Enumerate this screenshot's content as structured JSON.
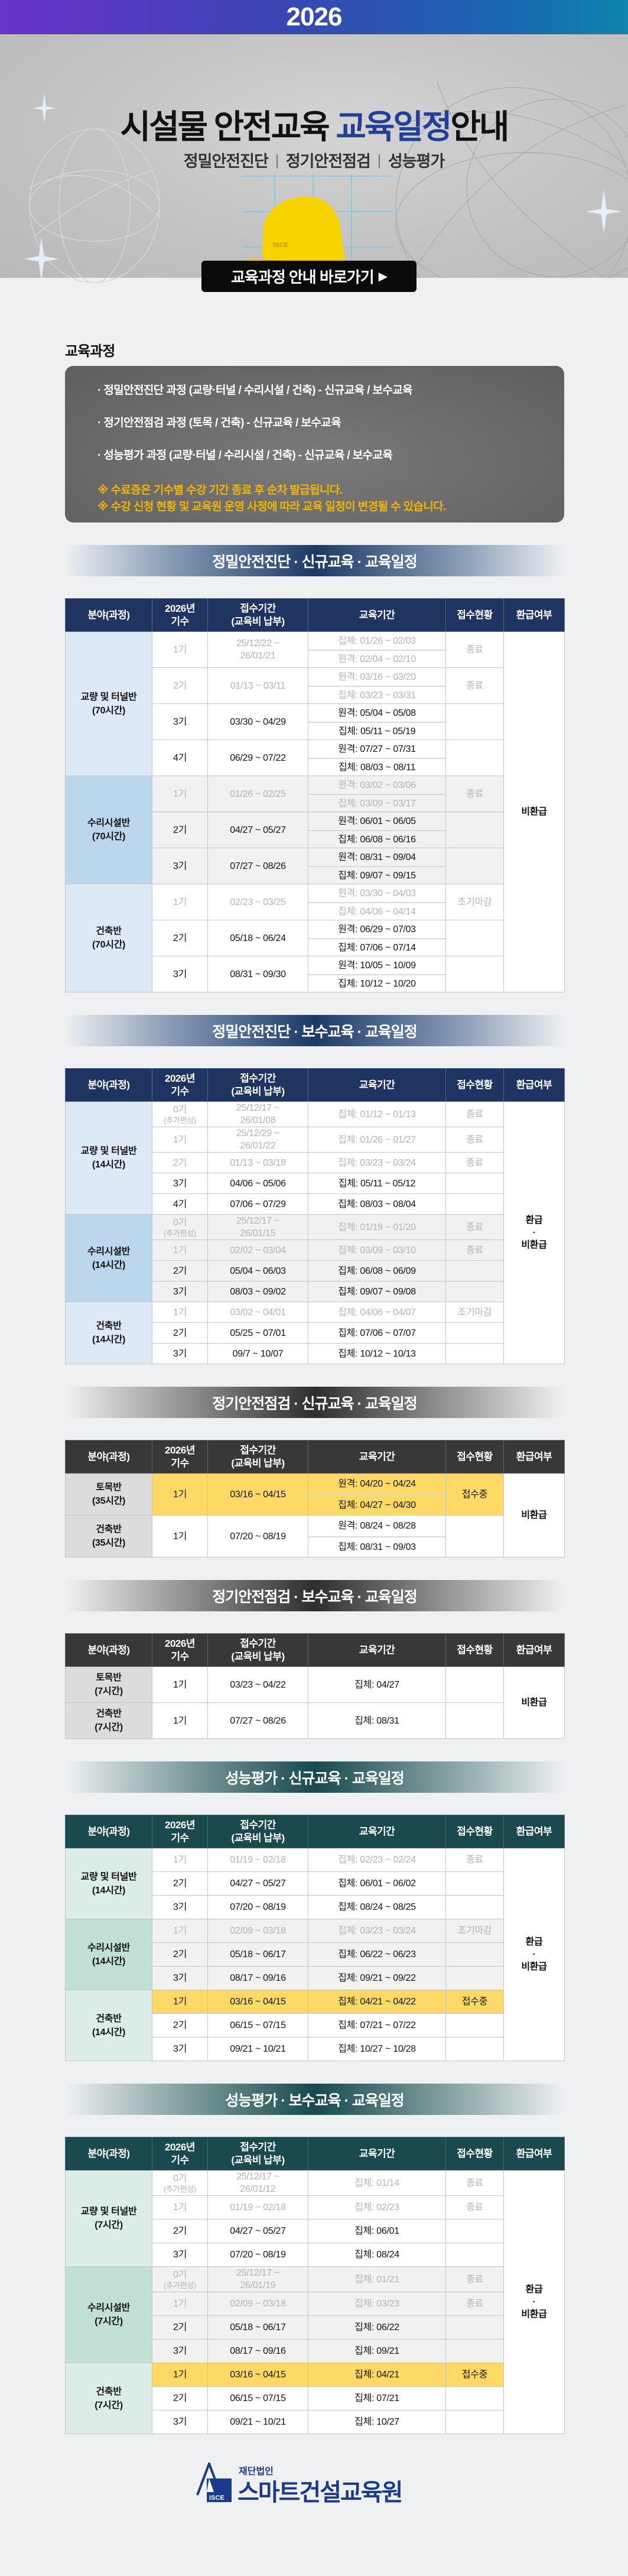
{
  "header": {
    "year": "2026",
    "title_main": "시설물 안전교육 ",
    "title_highlight": "교육일정",
    "title_tail": "안내",
    "subtitles": [
      "정밀안전진단",
      "정기안전점검",
      "성능평가"
    ],
    "cta_label": "교육과정 안내 바로가기",
    "cta_icon": "triangle-right-icon",
    "helmet_mark": "ISCE"
  },
  "courses": {
    "label": "교육과정",
    "items": [
      "· 정밀안전진단 과정 (교량·터널 / 수리시설 / 건축) - 신규교육 / 보수교육",
      "· 정기안전점검 과정 (토목 / 건축) - 신규교육 / 보수교육",
      "· 성능평가 과정 (교량·터널 / 수리시설 / 건축) - 신규교육 / 보수교육"
    ],
    "notes": [
      "※ 수료증은 기수별 수강 기간 종료 후 순차 발급됩니다.",
      "※ 수강 신청 현황 및 교육원 운영 사정에 따라 교육 일정이 변경될 수 있습니다."
    ]
  },
  "columns": [
    "분야(과정)",
    "2026년\n기수",
    "접수기간\n(교육비 납부)",
    "교육기간",
    "접수현황",
    "환급여부"
  ],
  "colors": {
    "navy": "#1f3460",
    "gray": "#383838",
    "green": "#1a4a4e",
    "highlight": "#ffd966",
    "note": "#f5b400",
    "brand": "#1a3a8a"
  },
  "tables": [
    {
      "title": "정밀안전진단 · 신규교육 · 교육일정",
      "theme": "navy",
      "refund": "비환급",
      "groups": [
        {
          "label": "교량 및 터널반\n(70시간)",
          "rows": [
            {
              "gen": "1기",
              "reg": "25/12/22 ~\n26/01/21",
              "edu": [
                "집체: 01/26 ~ 02/03",
                "원격: 02/04 ~ 02/10"
              ],
              "status": "종료",
              "past": true
            },
            {
              "gen": "2기",
              "reg": "01/13 ~ 03/11",
              "edu": [
                "원격: 03/16 ~ 03/20",
                "집체: 03/23 ~ 03/31"
              ],
              "status": "종료",
              "past": true
            },
            {
              "gen": "3기",
              "reg": "03/30 ~ 04/29",
              "edu": [
                "원격: 05/04 ~ 05/08",
                "집체: 05/11 ~ 05/19"
              ],
              "status": ""
            },
            {
              "gen": "4기",
              "reg": "06/29 ~ 07/22",
              "edu": [
                "원격: 07/27 ~ 07/31",
                "집체: 08/03 ~ 08/11"
              ],
              "status": ""
            }
          ]
        },
        {
          "label": "수리시설반\n(70시간)",
          "rows": [
            {
              "gen": "1기",
              "reg": "01/26 ~ 02/25",
              "edu": [
                "원격: 03/02 ~ 03/06",
                "집체: 03/09 ~ 03/17"
              ],
              "status": "종료",
              "past": true
            },
            {
              "gen": "2기",
              "reg": "04/27 ~ 05/27",
              "edu": [
                "원격: 06/01 ~ 06/05",
                "집체: 06/08 ~ 06/16"
              ],
              "status": ""
            },
            {
              "gen": "3기",
              "reg": "07/27 ~ 08/26",
              "edu": [
                "원격: 08/31 ~ 09/04",
                "집체: 09/07 ~ 09/15"
              ],
              "status": ""
            }
          ]
        },
        {
          "label": "건축반\n(70시간)",
          "rows": [
            {
              "gen": "1기",
              "reg": "02/23 ~ 03/25",
              "edu": [
                "원격: 03/30 ~ 04/03",
                "집체: 04/06 ~ 04/14"
              ],
              "status": "조기마감",
              "past": true
            },
            {
              "gen": "2기",
              "reg": "05/18 ~ 06/24",
              "edu": [
                "원격: 06/29 ~ 07/03",
                "집체: 07/06 ~ 07/14"
              ],
              "status": ""
            },
            {
              "gen": "3기",
              "reg": "08/31 ~ 09/30",
              "edu": [
                "원격: 10/05 ~ 10/09",
                "집체: 10/12 ~ 10/20"
              ],
              "status": ""
            }
          ]
        }
      ]
    },
    {
      "title": "정밀안전진단 · 보수교육 · 교육일정",
      "theme": "navy",
      "refund": "환급\n·\n비환급",
      "groups": [
        {
          "label": "교량 및 터널반\n(14시간)",
          "rows": [
            {
              "gen": "0기",
              "gen_note": "(추가편성)",
              "reg": "25/12/17 ~\n26/01/08",
              "edu": [
                "집체: 01/12 ~ 01/13"
              ],
              "status": "종료",
              "past": true
            },
            {
              "gen": "1기",
              "reg": "25/12/29 ~\n26/01/22",
              "edu": [
                "집체: 01/26 ~ 01/27"
              ],
              "status": "종료",
              "past": true
            },
            {
              "gen": "2기",
              "reg": "01/13 ~ 03/18",
              "edu": [
                "집체: 03/23 ~ 03/24"
              ],
              "status": "종료",
              "past": true
            },
            {
              "gen": "3기",
              "reg": "04/06 ~ 05/06",
              "edu": [
                "집체: 05/11 ~ 05/12"
              ],
              "status": ""
            },
            {
              "gen": "4기",
              "reg": "07/06 ~ 07/29",
              "edu": [
                "집체: 08/03 ~ 08/04"
              ],
              "status": ""
            }
          ]
        },
        {
          "label": "수리시설반\n(14시간)",
          "rows": [
            {
              "gen": "0기",
              "gen_note": "(추가편성)",
              "reg": "25/12/17 ~\n26/01/15",
              "edu": [
                "집체: 01/19 ~ 01/20"
              ],
              "status": "종료",
              "past": true
            },
            {
              "gen": "1기",
              "reg": "02/02 ~ 03/04",
              "edu": [
                "집체: 03/09 ~ 03/10"
              ],
              "status": "종료",
              "past": true
            },
            {
              "gen": "2기",
              "reg": "05/04 ~ 06/03",
              "edu": [
                "집체: 06/08 ~ 06/09"
              ],
              "status": ""
            },
            {
              "gen": "3기",
              "reg": "08/03 ~ 09/02",
              "edu": [
                "집체: 09/07 ~ 09/08"
              ],
              "status": ""
            }
          ]
        },
        {
          "label": "건축반\n(14시간)",
          "rows": [
            {
              "gen": "1기",
              "reg": "03/02 ~ 04/01",
              "edu": [
                "집체: 04/06 ~ 04/07"
              ],
              "status": "조기마감",
              "past": true
            },
            {
              "gen": "2기",
              "reg": "05/25 ~ 07/01",
              "edu": [
                "집체: 07/06 ~ 07/07"
              ],
              "status": ""
            },
            {
              "gen": "3기",
              "reg": "09/7 ~ 10/07",
              "edu": [
                "집체: 10/12 ~ 10/13"
              ],
              "status": ""
            }
          ]
        }
      ]
    },
    {
      "title": "정기안전점검 · 신규교육 · 교육일정",
      "theme": "gray",
      "refund": "비환급",
      "groups": [
        {
          "label": "토목반\n(35시간)",
          "rows": [
            {
              "gen": "1기",
              "reg": "03/16 ~ 04/15",
              "edu": [
                "원격: 04/20 ~ 04/24",
                "집체: 04/27 ~ 04/30"
              ],
              "status": "접수중",
              "highlight": true
            }
          ]
        },
        {
          "label": "건축반\n(35시간)",
          "rows": [
            {
              "gen": "1기",
              "reg": "07/20 ~ 08/19",
              "edu": [
                "원격: 08/24 ~ 08/28",
                "집체: 08/31 ~ 09/03"
              ],
              "status": ""
            }
          ]
        }
      ]
    },
    {
      "title": "정기안전점검 · 보수교육 · 교육일정",
      "theme": "gray",
      "refund": "비환급",
      "groups": [
        {
          "label": "토목반\n(7시간)",
          "rows": [
            {
              "gen": "1기",
              "reg": "03/23 ~ 04/22",
              "edu": [
                "집체: 04/27"
              ],
              "status": ""
            }
          ]
        },
        {
          "label": "건축반\n(7시간)",
          "rows": [
            {
              "gen": "1기",
              "reg": "07/27 ~ 08/26",
              "edu": [
                "집체: 08/31"
              ],
              "status": ""
            }
          ]
        }
      ]
    },
    {
      "title": "성능평가 · 신규교육 · 교육일정",
      "theme": "green",
      "refund": "환급\n·\n비환급",
      "groups": [
        {
          "label": "교량 및 터널반\n(14시간)",
          "rows": [
            {
              "gen": "1기",
              "reg": "01/19 ~ 02/18",
              "edu": [
                "집체: 02/23 ~ 02/24"
              ],
              "status": "종료",
              "past": true
            },
            {
              "gen": "2기",
              "reg": "04/27 ~ 05/27",
              "edu": [
                "집체: 06/01 ~ 06/02"
              ],
              "status": ""
            },
            {
              "gen": "3기",
              "reg": "07/20 ~ 08/19",
              "edu": [
                "집체: 08/24 ~ 08/25"
              ],
              "status": ""
            }
          ]
        },
        {
          "label": "수리시설반\n(14시간)",
          "rows": [
            {
              "gen": "1기",
              "reg": "02/09 ~ 03/18",
              "edu": [
                "집체: 03/23 ~ 03/24"
              ],
              "status": "조기마감",
              "past": true
            },
            {
              "gen": "2기",
              "reg": "05/18 ~ 06/17",
              "edu": [
                "집체: 06/22 ~ 06/23"
              ],
              "status": ""
            },
            {
              "gen": "3기",
              "reg": "08/17 ~ 09/16",
              "edu": [
                "집체: 09/21 ~ 09/22"
              ],
              "status": ""
            }
          ]
        },
        {
          "label": "건축반\n(14시간)",
          "rows": [
            {
              "gen": "1기",
              "reg": "03/16 ~ 04/15",
              "edu": [
                "집체: 04/21 ~ 04/22"
              ],
              "status": "접수중",
              "highlight": true
            },
            {
              "gen": "2기",
              "reg": "06/15 ~ 07/15",
              "edu": [
                "집체: 07/21 ~ 07/22"
              ],
              "status": ""
            },
            {
              "gen": "3기",
              "reg": "09/21 ~ 10/21",
              "edu": [
                "집체: 10/27 ~ 10/28"
              ],
              "status": ""
            }
          ]
        }
      ]
    },
    {
      "title": "성능평가 · 보수교육 · 교육일정",
      "theme": "green",
      "refund": "환급\n·\n비환급",
      "groups": [
        {
          "label": "교량 및 터널반\n(7시간)",
          "rows": [
            {
              "gen": "0기",
              "gen_note": "(추가편성)",
              "reg": "25/12/17 ~\n26/01/12",
              "edu": [
                "집체: 01/14"
              ],
              "status": "종료",
              "past": true
            },
            {
              "gen": "1기",
              "reg": "01/19 ~ 02/18",
              "edu": [
                "집체: 02/23"
              ],
              "status": "종료",
              "past": true
            },
            {
              "gen": "2기",
              "reg": "04/27 ~ 05/27",
              "edu": [
                "집체: 06/01"
              ],
              "status": ""
            },
            {
              "gen": "3기",
              "reg": "07/20 ~ 08/19",
              "edu": [
                "집체: 08/24"
              ],
              "status": ""
            }
          ]
        },
        {
          "label": "수리시설반\n(7시간)",
          "rows": [
            {
              "gen": "0기",
              "gen_note": "(추가편성)",
              "reg": "25/12/17 ~\n26/01/19",
              "edu": [
                "집체: 01/21"
              ],
              "status": "종료",
              "past": true
            },
            {
              "gen": "1기",
              "reg": "02/09 ~ 03/18",
              "edu": [
                "집체: 03/23"
              ],
              "status": "종료",
              "past": true
            },
            {
              "gen": "2기",
              "reg": "05/18 ~ 06/17",
              "edu": [
                "집체: 06/22"
              ],
              "status": ""
            },
            {
              "gen": "3기",
              "reg": "08/17 ~ 09/16",
              "edu": [
                "집체: 09/21"
              ],
              "status": ""
            }
          ]
        },
        {
          "label": "건축반\n(7시간)",
          "rows": [
            {
              "gen": "1기",
              "reg": "03/16 ~ 04/15",
              "edu": [
                "집체: 04/21"
              ],
              "status": "접수중",
              "highlight": true
            },
            {
              "gen": "2기",
              "reg": "06/15 ~ 07/15",
              "edu": [
                "집체: 07/21"
              ],
              "status": ""
            },
            {
              "gen": "3기",
              "reg": "09/21 ~ 10/21",
              "edu": [
                "집체: 10/27"
              ],
              "status": ""
            }
          ]
        }
      ]
    }
  ],
  "footer": {
    "logo_small": "재단법인",
    "logo_name": "스마트건설교육원",
    "logo_mark": "ISCE"
  }
}
